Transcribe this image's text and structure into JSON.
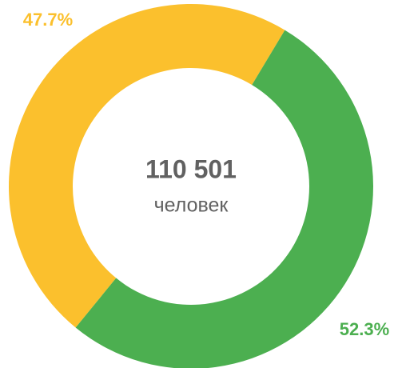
{
  "chart_data": {
    "type": "donut",
    "values": [
      52.3,
      47.7
    ],
    "value_labels": [
      "52.3%",
      "47.7%"
    ],
    "colors": [
      "#4caf50",
      "#fbc02d"
    ],
    "center_text": "110 501",
    "center_subtext": "человек"
  }
}
